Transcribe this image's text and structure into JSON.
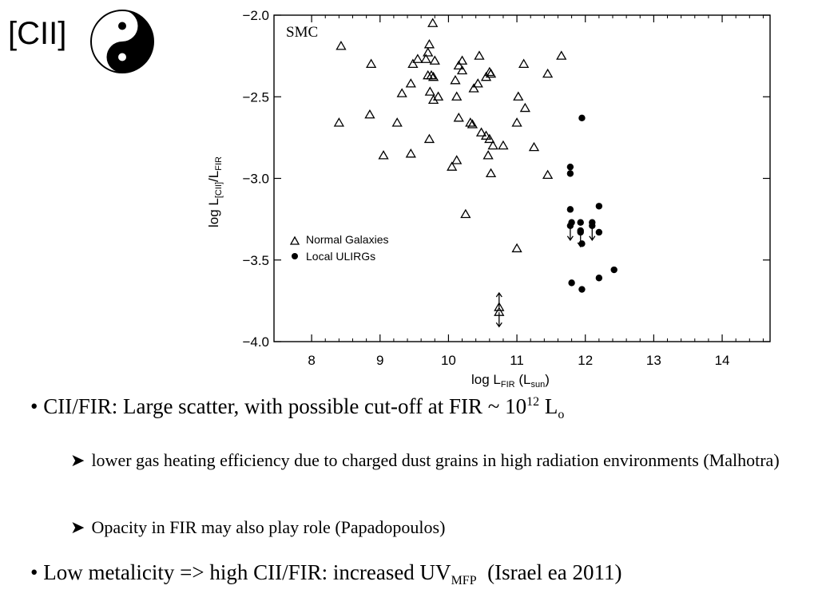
{
  "slide": {
    "title": "[CII]"
  },
  "icons": {
    "yinyang": "yin-yang-icon",
    "sub_bullet": "arrowhead-bullet-icon"
  },
  "colors": {
    "text": "#000000",
    "background": "#ffffff"
  },
  "chart_data": {
    "type": "scatter",
    "xlabel_main": "log L",
    "xlabel_sub": "FIR",
    "xlabel_paren_sub": "sun",
    "ylabel_main": "log L",
    "ylabel_sub1": "[CII]",
    "ylabel_sub2": "FIR",
    "xlim": [
      8,
      14.5
    ],
    "ylim": [
      -4.0,
      -2.0
    ],
    "xticks": [
      8,
      9,
      10,
      11,
      12,
      13,
      14
    ],
    "yticks": [
      -2.0,
      -2.5,
      -3.0,
      -3.5,
      -4.0
    ],
    "ytick_labels": [
      "−2.0",
      "−2.5",
      "−3.0",
      "−3.5",
      "−4.0"
    ],
    "annotation": "SMC",
    "legend_position": "lower-left",
    "series": [
      {
        "name": "Normal Galaxies",
        "marker": "triangle",
        "points": [
          [
            8.43,
            -2.19
          ],
          [
            8.87,
            -2.3
          ],
          [
            9.77,
            -2.05
          ],
          [
            9.72,
            -2.18
          ],
          [
            9.7,
            -2.23
          ],
          [
            9.8,
            -2.28
          ],
          [
            9.67,
            -2.27
          ],
          [
            9.55,
            -2.27
          ],
          [
            9.48,
            -2.3
          ],
          [
            10.2,
            -2.28
          ],
          [
            10.15,
            -2.31
          ],
          [
            10.45,
            -2.25
          ],
          [
            10.62,
            -2.36
          ],
          [
            11.1,
            -2.3
          ],
          [
            11.45,
            -2.36
          ],
          [
            11.65,
            -2.25
          ],
          [
            8.4,
            -2.66
          ],
          [
            8.85,
            -2.61
          ],
          [
            9.25,
            -2.66
          ],
          [
            9.32,
            -2.48
          ],
          [
            9.45,
            -2.42
          ],
          [
            9.7,
            -2.37
          ],
          [
            9.75,
            -2.37
          ],
          [
            9.78,
            -2.38
          ],
          [
            9.85,
            -2.5
          ],
          [
            9.73,
            -2.47
          ],
          [
            9.78,
            -2.52
          ],
          [
            10.1,
            -2.4
          ],
          [
            10.2,
            -2.34
          ],
          [
            10.37,
            -2.45
          ],
          [
            10.43,
            -2.42
          ],
          [
            10.55,
            -2.38
          ],
          [
            10.12,
            -2.5
          ],
          [
            10.6,
            -2.35
          ],
          [
            11.02,
            -2.5
          ],
          [
            11.12,
            -2.57
          ],
          [
            10.15,
            -2.63
          ],
          [
            10.32,
            -2.66
          ],
          [
            10.35,
            -2.67
          ],
          [
            11.0,
            -2.66
          ],
          [
            10.55,
            -2.74
          ],
          [
            10.6,
            -2.76
          ],
          [
            10.65,
            -2.8
          ],
          [
            10.48,
            -2.72
          ],
          [
            9.05,
            -2.86
          ],
          [
            9.45,
            -2.85
          ],
          [
            9.72,
            -2.76
          ],
          [
            10.05,
            -2.93
          ],
          [
            10.12,
            -2.89
          ],
          [
            10.58,
            -2.86
          ],
          [
            10.62,
            -2.97
          ],
          [
            11.25,
            -2.81
          ],
          [
            11.45,
            -2.98
          ],
          [
            10.8,
            -2.8
          ],
          [
            10.25,
            -3.22
          ],
          [
            11.0,
            -3.43
          ]
        ]
      },
      {
        "name": "Local ULIRGs",
        "marker": "filled-circle",
        "points": [
          [
            11.95,
            -2.63
          ],
          [
            11.78,
            -2.93
          ],
          [
            11.78,
            -2.97
          ],
          [
            11.78,
            -3.19
          ],
          [
            11.8,
            -3.27
          ],
          [
            11.93,
            -3.27
          ],
          [
            12.1,
            -3.27
          ],
          [
            12.2,
            -3.17
          ],
          [
            11.93,
            -3.32
          ],
          [
            12.2,
            -3.33
          ],
          [
            11.95,
            -3.4
          ],
          [
            11.8,
            -3.64
          ],
          [
            11.95,
            -3.68
          ],
          [
            12.2,
            -3.61
          ],
          [
            12.42,
            -3.56
          ]
        ]
      }
    ],
    "upper_limits": [
      {
        "x": 11.78,
        "y": -3.29,
        "marker": "filled-circle"
      },
      {
        "x": 11.93,
        "y": -3.33,
        "marker": "filled-circle"
      },
      {
        "x": 12.1,
        "y": -3.29,
        "marker": "filled-circle"
      },
      {
        "x": 10.74,
        "y": -3.82,
        "marker": "triangle"
      }
    ],
    "lower_limits": [
      {
        "x": 10.74,
        "y": -3.79,
        "marker": "triangle"
      }
    ]
  },
  "bullets": {
    "b1": {
      "dot": "•",
      "text": "CII/FIR: Large scatter, with possible cut-off at FIR ~ 10",
      "sup": "12",
      "unit": " L",
      "unit_sub": "o"
    },
    "s1": {
      "text": "lower gas heating efficiency due to charged dust grains in high radiation environments (Malhotra)"
    },
    "s2": {
      "text": "Opacity in FIR may also play role (Papadopoulos)"
    },
    "b2": {
      "dot": "•",
      "text": "Low metalicity => high CII/FIR: increased UV",
      "sub": "MFP",
      "tail": "  (Israel ea 2011)"
    }
  }
}
